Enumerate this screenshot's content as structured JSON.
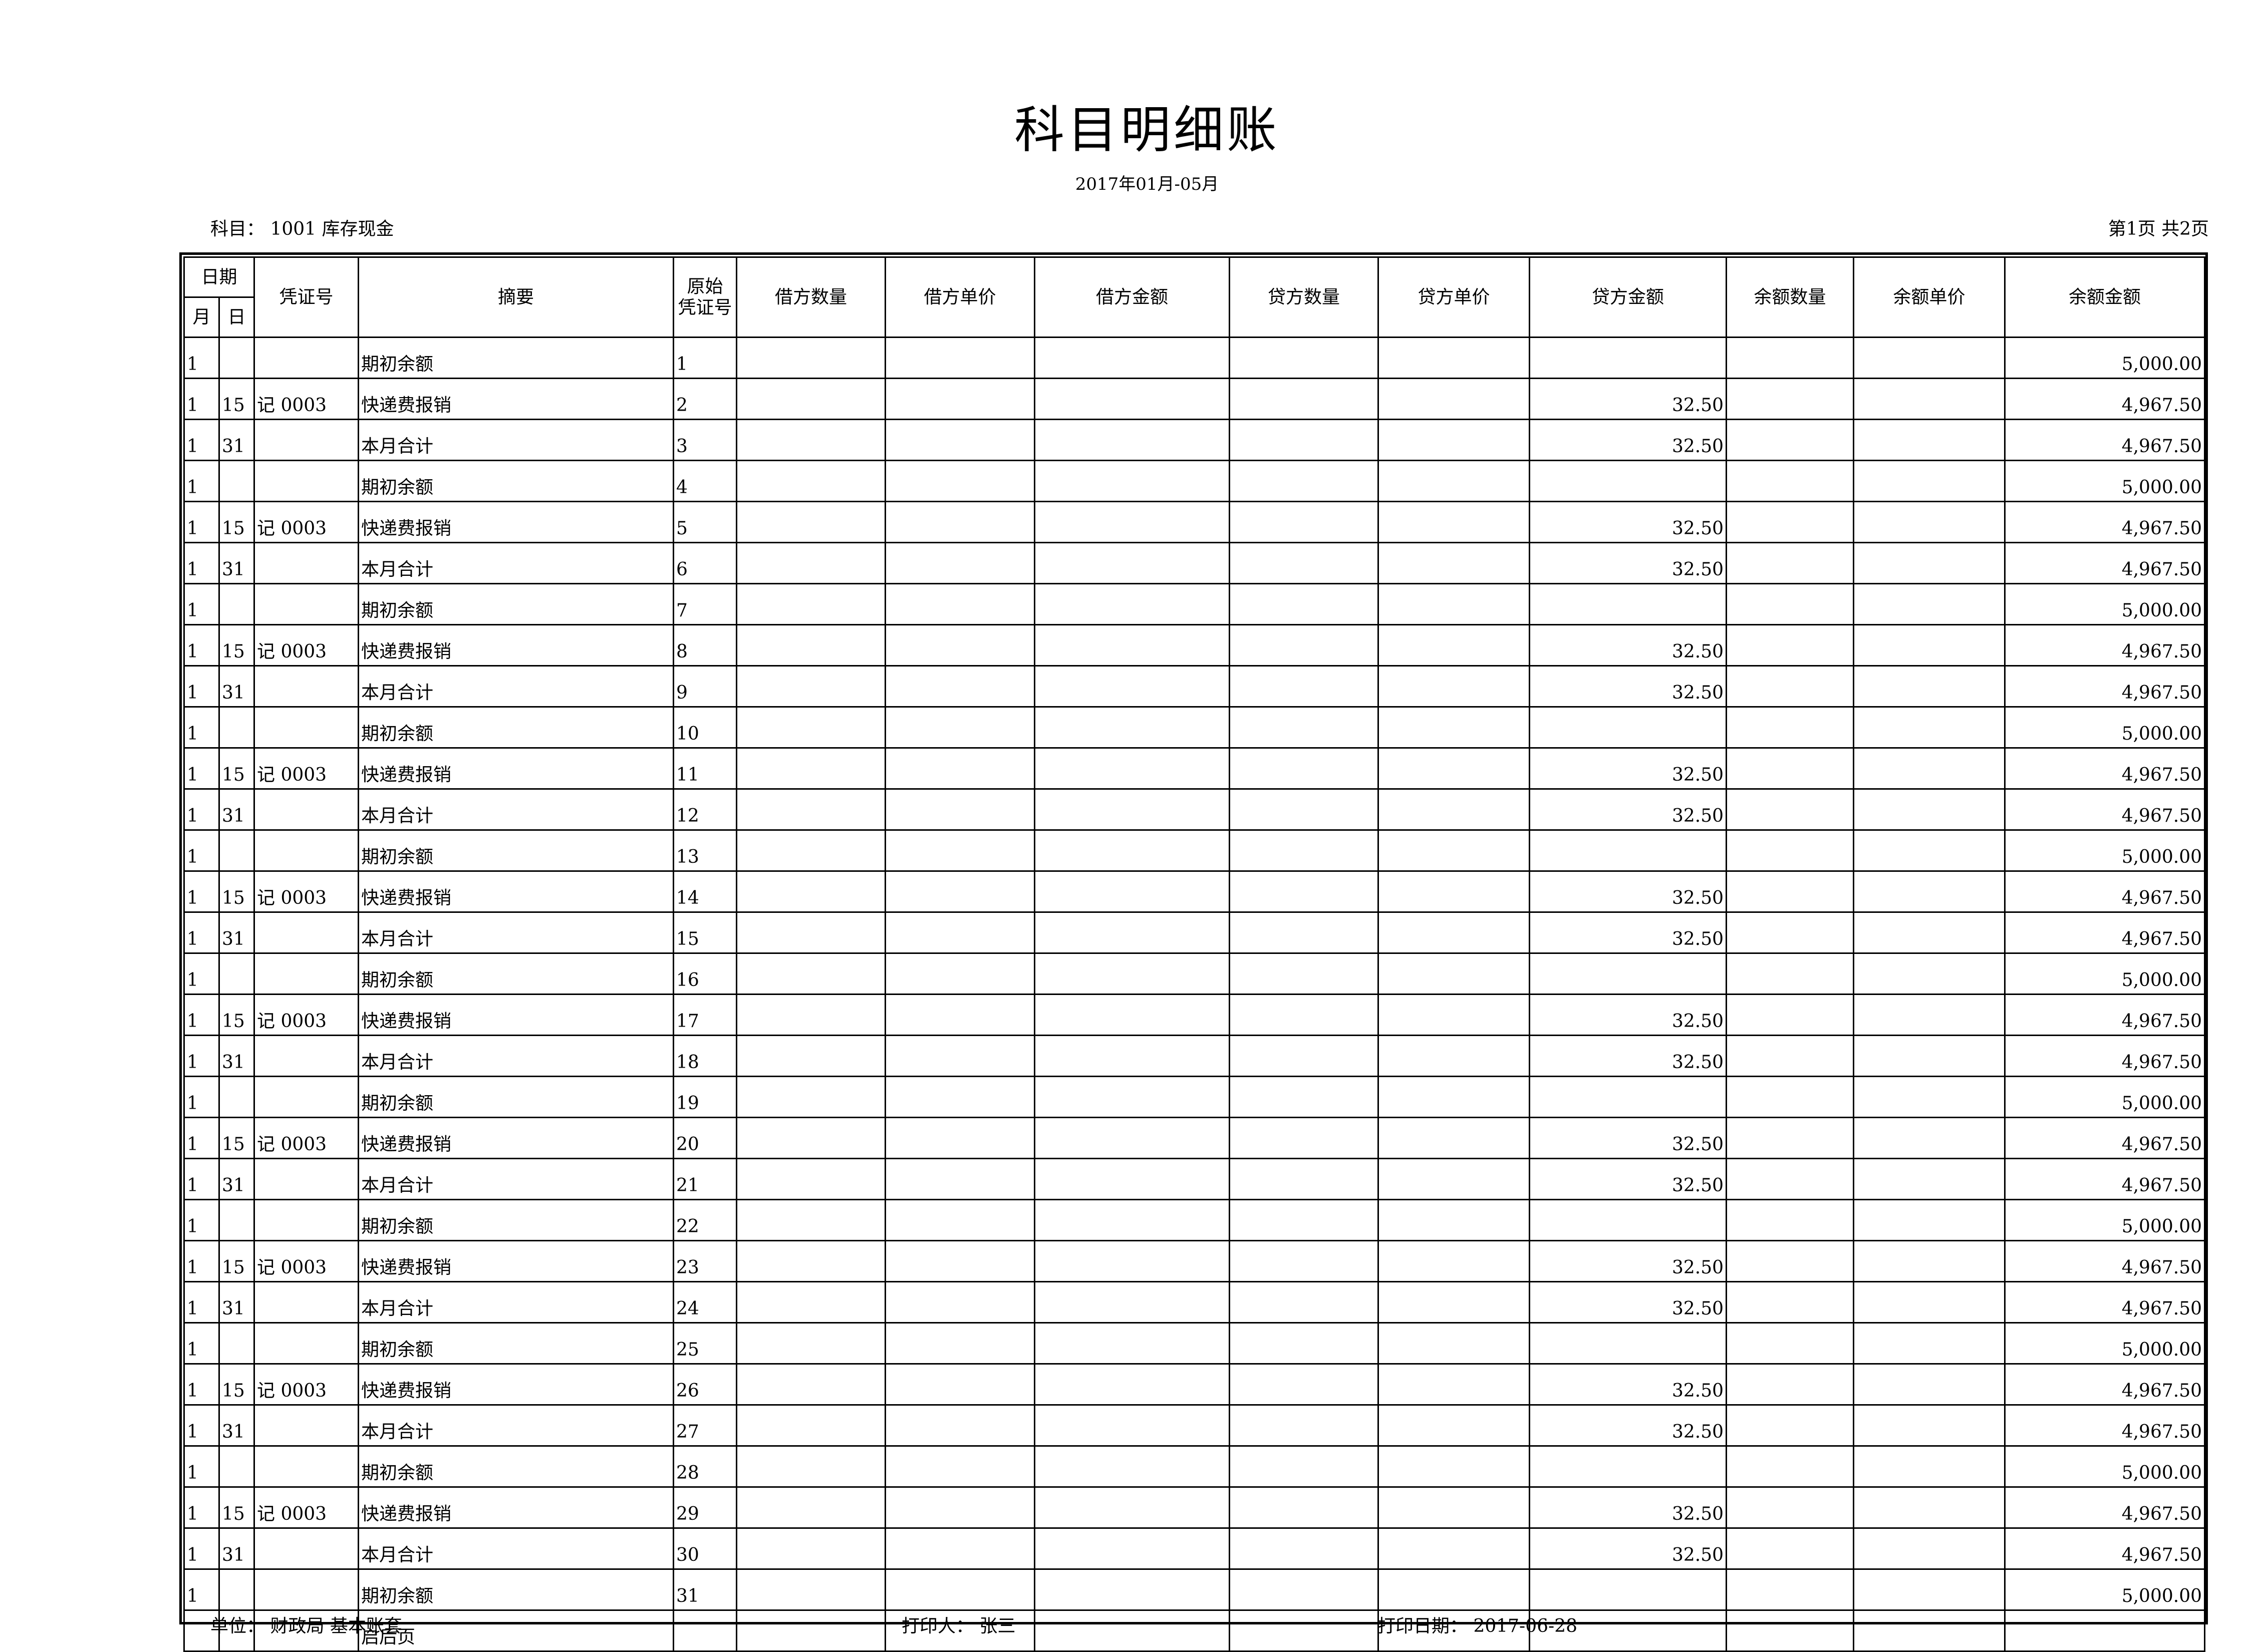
{
  "title": "科目明细账",
  "period": "2017年01月-05月",
  "subject": "科目：  1001 库存现金",
  "page_info": "第1页 共2页",
  "headers": {
    "date": "日期",
    "month": "月",
    "day": "日",
    "voucher": "凭证号",
    "summary": "摘要",
    "orig_voucher_1": "原始",
    "orig_voucher_2": "凭证号",
    "debit_qty": "借方数量",
    "debit_price": "借方单价",
    "debit_amt": "借方金额",
    "credit_qty": "贷方数量",
    "credit_price": "贷方单价",
    "credit_amt": "贷方金额",
    "bal_qty": "余额数量",
    "bal_price": "余额单价",
    "bal_amt": "余额金额"
  },
  "rows": [
    {
      "m": "1",
      "d": "",
      "v": "",
      "s": "期初余额",
      "o": "1",
      "dq": "",
      "dp": "",
      "da": "",
      "cq": "",
      "cp": "",
      "ca": "",
      "bq": "",
      "bp": "",
      "ba": "5,000.00"
    },
    {
      "m": "1",
      "d": "15",
      "v": "记 0003",
      "s": "快递费报销",
      "o": "2",
      "dq": "",
      "dp": "",
      "da": "",
      "cq": "",
      "cp": "",
      "ca": "32.50",
      "bq": "",
      "bp": "",
      "ba": "4,967.50"
    },
    {
      "m": "1",
      "d": "31",
      "v": "",
      "s": "本月合计",
      "o": "3",
      "dq": "",
      "dp": "",
      "da": "",
      "cq": "",
      "cp": "",
      "ca": "32.50",
      "bq": "",
      "bp": "",
      "ba": "4,967.50"
    },
    {
      "m": "1",
      "d": "",
      "v": "",
      "s": "期初余额",
      "o": "4",
      "dq": "",
      "dp": "",
      "da": "",
      "cq": "",
      "cp": "",
      "ca": "",
      "bq": "",
      "bp": "",
      "ba": "5,000.00"
    },
    {
      "m": "1",
      "d": "15",
      "v": "记 0003",
      "s": "快递费报销",
      "o": "5",
      "dq": "",
      "dp": "",
      "da": "",
      "cq": "",
      "cp": "",
      "ca": "32.50",
      "bq": "",
      "bp": "",
      "ba": "4,967.50"
    },
    {
      "m": "1",
      "d": "31",
      "v": "",
      "s": "本月合计",
      "o": "6",
      "dq": "",
      "dp": "",
      "da": "",
      "cq": "",
      "cp": "",
      "ca": "32.50",
      "bq": "",
      "bp": "",
      "ba": "4,967.50"
    },
    {
      "m": "1",
      "d": "",
      "v": "",
      "s": "期初余额",
      "o": "7",
      "dq": "",
      "dp": "",
      "da": "",
      "cq": "",
      "cp": "",
      "ca": "",
      "bq": "",
      "bp": "",
      "ba": "5,000.00"
    },
    {
      "m": "1",
      "d": "15",
      "v": "记 0003",
      "s": "快递费报销",
      "o": "8",
      "dq": "",
      "dp": "",
      "da": "",
      "cq": "",
      "cp": "",
      "ca": "32.50",
      "bq": "",
      "bp": "",
      "ba": "4,967.50"
    },
    {
      "m": "1",
      "d": "31",
      "v": "",
      "s": "本月合计",
      "o": "9",
      "dq": "",
      "dp": "",
      "da": "",
      "cq": "",
      "cp": "",
      "ca": "32.50",
      "bq": "",
      "bp": "",
      "ba": "4,967.50"
    },
    {
      "m": "1",
      "d": "",
      "v": "",
      "s": "期初余额",
      "o": "10",
      "dq": "",
      "dp": "",
      "da": "",
      "cq": "",
      "cp": "",
      "ca": "",
      "bq": "",
      "bp": "",
      "ba": "5,000.00"
    },
    {
      "m": "1",
      "d": "15",
      "v": "记 0003",
      "s": "快递费报销",
      "o": "11",
      "dq": "",
      "dp": "",
      "da": "",
      "cq": "",
      "cp": "",
      "ca": "32.50",
      "bq": "",
      "bp": "",
      "ba": "4,967.50"
    },
    {
      "m": "1",
      "d": "31",
      "v": "",
      "s": "本月合计",
      "o": "12",
      "dq": "",
      "dp": "",
      "da": "",
      "cq": "",
      "cp": "",
      "ca": "32.50",
      "bq": "",
      "bp": "",
      "ba": "4,967.50"
    },
    {
      "m": "1",
      "d": "",
      "v": "",
      "s": "期初余额",
      "o": "13",
      "dq": "",
      "dp": "",
      "da": "",
      "cq": "",
      "cp": "",
      "ca": "",
      "bq": "",
      "bp": "",
      "ba": "5,000.00"
    },
    {
      "m": "1",
      "d": "15",
      "v": "记 0003",
      "s": "快递费报销",
      "o": "14",
      "dq": "",
      "dp": "",
      "da": "",
      "cq": "",
      "cp": "",
      "ca": "32.50",
      "bq": "",
      "bp": "",
      "ba": "4,967.50"
    },
    {
      "m": "1",
      "d": "31",
      "v": "",
      "s": "本月合计",
      "o": "15",
      "dq": "",
      "dp": "",
      "da": "",
      "cq": "",
      "cp": "",
      "ca": "32.50",
      "bq": "",
      "bp": "",
      "ba": "4,967.50"
    },
    {
      "m": "1",
      "d": "",
      "v": "",
      "s": "期初余额",
      "o": "16",
      "dq": "",
      "dp": "",
      "da": "",
      "cq": "",
      "cp": "",
      "ca": "",
      "bq": "",
      "bp": "",
      "ba": "5,000.00"
    },
    {
      "m": "1",
      "d": "15",
      "v": "记 0003",
      "s": "快递费报销",
      "o": "17",
      "dq": "",
      "dp": "",
      "da": "",
      "cq": "",
      "cp": "",
      "ca": "32.50",
      "bq": "",
      "bp": "",
      "ba": "4,967.50"
    },
    {
      "m": "1",
      "d": "31",
      "v": "",
      "s": "本月合计",
      "o": "18",
      "dq": "",
      "dp": "",
      "da": "",
      "cq": "",
      "cp": "",
      "ca": "32.50",
      "bq": "",
      "bp": "",
      "ba": "4,967.50"
    },
    {
      "m": "1",
      "d": "",
      "v": "",
      "s": "期初余额",
      "o": "19",
      "dq": "",
      "dp": "",
      "da": "",
      "cq": "",
      "cp": "",
      "ca": "",
      "bq": "",
      "bp": "",
      "ba": "5,000.00"
    },
    {
      "m": "1",
      "d": "15",
      "v": "记 0003",
      "s": "快递费报销",
      "o": "20",
      "dq": "",
      "dp": "",
      "da": "",
      "cq": "",
      "cp": "",
      "ca": "32.50",
      "bq": "",
      "bp": "",
      "ba": "4,967.50"
    },
    {
      "m": "1",
      "d": "31",
      "v": "",
      "s": "本月合计",
      "o": "21",
      "dq": "",
      "dp": "",
      "da": "",
      "cq": "",
      "cp": "",
      "ca": "32.50",
      "bq": "",
      "bp": "",
      "ba": "4,967.50"
    },
    {
      "m": "1",
      "d": "",
      "v": "",
      "s": "期初余额",
      "o": "22",
      "dq": "",
      "dp": "",
      "da": "",
      "cq": "",
      "cp": "",
      "ca": "",
      "bq": "",
      "bp": "",
      "ba": "5,000.00"
    },
    {
      "m": "1",
      "d": "15",
      "v": "记 0003",
      "s": "快递费报销",
      "o": "23",
      "dq": "",
      "dp": "",
      "da": "",
      "cq": "",
      "cp": "",
      "ca": "32.50",
      "bq": "",
      "bp": "",
      "ba": "4,967.50"
    },
    {
      "m": "1",
      "d": "31",
      "v": "",
      "s": "本月合计",
      "o": "24",
      "dq": "",
      "dp": "",
      "da": "",
      "cq": "",
      "cp": "",
      "ca": "32.50",
      "bq": "",
      "bp": "",
      "ba": "4,967.50"
    },
    {
      "m": "1",
      "d": "",
      "v": "",
      "s": "期初余额",
      "o": "25",
      "dq": "",
      "dp": "",
      "da": "",
      "cq": "",
      "cp": "",
      "ca": "",
      "bq": "",
      "bp": "",
      "ba": "5,000.00"
    },
    {
      "m": "1",
      "d": "15",
      "v": "记 0003",
      "s": "快递费报销",
      "o": "26",
      "dq": "",
      "dp": "",
      "da": "",
      "cq": "",
      "cp": "",
      "ca": "32.50",
      "bq": "",
      "bp": "",
      "ba": "4,967.50"
    },
    {
      "m": "1",
      "d": "31",
      "v": "",
      "s": "本月合计",
      "o": "27",
      "dq": "",
      "dp": "",
      "da": "",
      "cq": "",
      "cp": "",
      "ca": "32.50",
      "bq": "",
      "bp": "",
      "ba": "4,967.50"
    },
    {
      "m": "1",
      "d": "",
      "v": "",
      "s": "期初余额",
      "o": "28",
      "dq": "",
      "dp": "",
      "da": "",
      "cq": "",
      "cp": "",
      "ca": "",
      "bq": "",
      "bp": "",
      "ba": "5,000.00"
    },
    {
      "m": "1",
      "d": "15",
      "v": "记 0003",
      "s": "快递费报销",
      "o": "29",
      "dq": "",
      "dp": "",
      "da": "",
      "cq": "",
      "cp": "",
      "ca": "32.50",
      "bq": "",
      "bp": "",
      "ba": "4,967.50"
    },
    {
      "m": "1",
      "d": "31",
      "v": "",
      "s": "本月合计",
      "o": "30",
      "dq": "",
      "dp": "",
      "da": "",
      "cq": "",
      "cp": "",
      "ca": "32.50",
      "bq": "",
      "bp": "",
      "ba": "4,967.50"
    },
    {
      "m": "1",
      "d": "",
      "v": "",
      "s": "期初余额",
      "o": "31",
      "dq": "",
      "dp": "",
      "da": "",
      "cq": "",
      "cp": "",
      "ca": "",
      "bq": "",
      "bp": "",
      "ba": "5,000.00"
    },
    {
      "m": "",
      "d": "",
      "v": "",
      "s": "启后页",
      "o": "",
      "dq": "",
      "dp": "",
      "da": "",
      "cq": "",
      "cp": "",
      "ca": "",
      "bq": "",
      "bp": "",
      "ba": ""
    }
  ],
  "footer": {
    "unit": "单位：  财政局 基本账套",
    "printer": "打印人：  张三",
    "print_date": "打印日期：  2017-06-28"
  }
}
